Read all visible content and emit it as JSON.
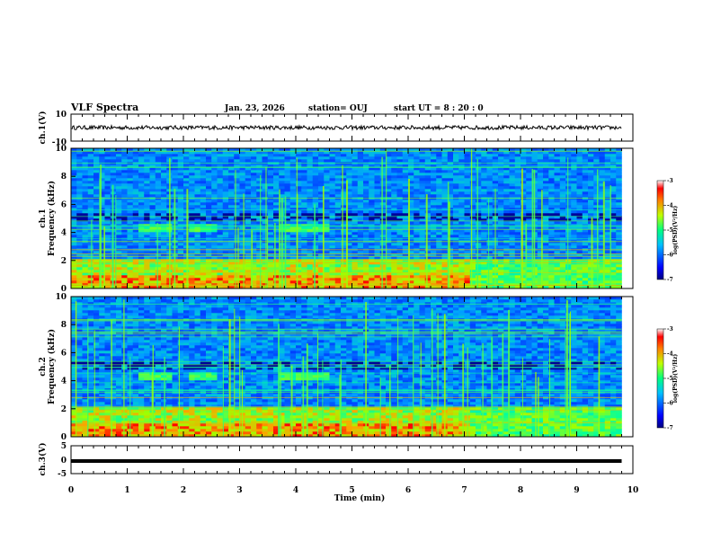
{
  "header": {
    "title": "VLF Spectra",
    "date": "Jan. 23, 2026",
    "station": "station= OUJ",
    "start": "start  UT =   8 : 20 : 0"
  },
  "chart_data": [
    {
      "type": "line",
      "panel": "ch1-waveform",
      "ylabel": "ch.1(V)",
      "ylim": [
        -10,
        10
      ],
      "yticks": [
        "10",
        "-10"
      ],
      "xlim": [
        0,
        10
      ],
      "approx_level": 0,
      "approx_amplitude": 1.5
    },
    {
      "type": "heatmap",
      "panel": "ch1-spectrogram",
      "ylabel": "ch.1\nFrequency (kHz)",
      "ylim": [
        0,
        10
      ],
      "yticks": [
        "0",
        "2",
        "4",
        "6",
        "8",
        "10"
      ],
      "xlim": [
        0,
        9.8
      ],
      "colorbar": {
        "label": "log(PSD)(V²/Hz)",
        "ticks": [
          "-3",
          "-4",
          "-5",
          "-6",
          "-7"
        ],
        "range": [
          -7,
          -3
        ]
      },
      "features": [
        {
          "name": "low-frequency band",
          "freq_khz": [
            0,
            2
          ],
          "level": -4.5
        },
        {
          "name": "band near 4.3 kHz",
          "freq_khz": [
            4,
            4.6
          ],
          "time_min": [
            [
              1.2,
              1.8
            ],
            [
              2.1,
              2.6
            ],
            [
              3.7,
              4.6
            ]
          ],
          "level": -5
        }
      ]
    },
    {
      "type": "heatmap",
      "panel": "ch2-spectrogram",
      "ylabel": "ch.2\nFrequency (kHz)",
      "ylim": [
        0,
        10
      ],
      "yticks": [
        "0",
        "2",
        "4",
        "6",
        "8",
        "10"
      ],
      "xlim": [
        0,
        9.8
      ],
      "colorbar": {
        "label": "log(PSD)(V²/Hz)",
        "ticks": [
          "-3",
          "-4",
          "-5",
          "-6",
          "-7"
        ],
        "range": [
          -7,
          -3
        ]
      },
      "features": [
        {
          "name": "low-frequency band",
          "freq_khz": [
            0,
            2
          ],
          "level": -4.5
        },
        {
          "name": "band near 4.3 kHz",
          "freq_khz": [
            4,
            4.6
          ],
          "time_min": [
            [
              1.2,
              1.8
            ],
            [
              2.1,
              2.6
            ],
            [
              3.7,
              4.6
            ]
          ],
          "level": -5
        }
      ]
    },
    {
      "type": "line",
      "panel": "ch3-waveform",
      "ylabel": "ch.3(V)",
      "ylim": [
        -5,
        5
      ],
      "yticks": [
        "5",
        "0",
        "-5"
      ],
      "xlim": [
        0,
        10
      ],
      "approx_level": -0.5
    }
  ],
  "xaxis": {
    "label": "Time (min)",
    "ticks": [
      "0",
      "1",
      "2",
      "3",
      "4",
      "5",
      "6",
      "7",
      "8",
      "9",
      "10"
    ],
    "range": [
      0,
      10
    ]
  }
}
